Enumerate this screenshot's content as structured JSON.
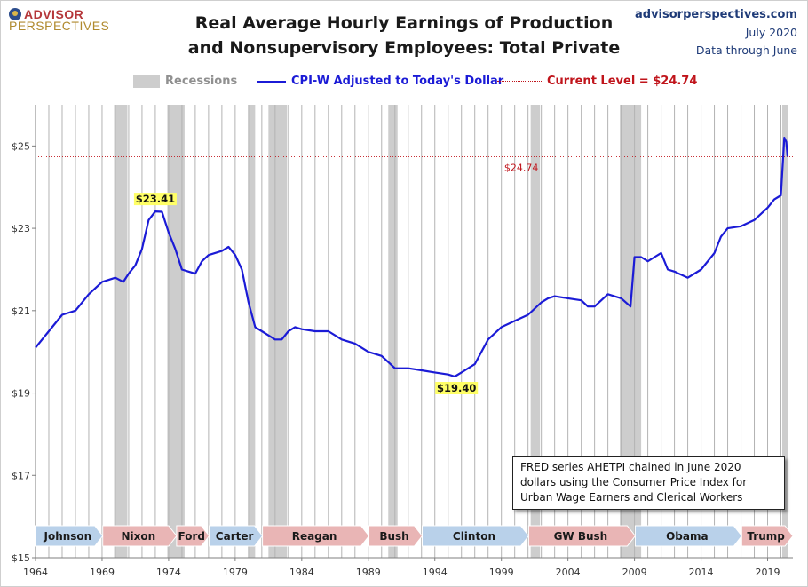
{
  "brand": {
    "logo_line1": "ADVISOR",
    "logo_line2": "PERSPECTIVES"
  },
  "header": {
    "title_line1": "Real Average Hourly Earnings of Production",
    "title_line2": "and Nonsupervisory Employees: Total Private",
    "site": "advisorperspectives.com",
    "date": "July 2020",
    "data_through": "Data through June"
  },
  "legend": {
    "recessions": "Recessions",
    "series": "CPI-W Adjusted to Today's Dollar",
    "current": "Current Level = $24.74"
  },
  "note": "FRED series AHETPI chained in June 2020 dollars using the Consumer Price Index for Urban Wage Earners and Clerical Workers",
  "colors": {
    "line": "#1b1bd6",
    "recession": "#cdcdcd",
    "current": "#c0141b",
    "annotation_bg": "#ffff66",
    "dem_arrow": "#b9d1ea",
    "rep_arrow": "#e9b5b5"
  },
  "chart_data": {
    "type": "line",
    "x_range": [
      1964,
      2020.9
    ],
    "ylim": [
      15,
      26
    ],
    "yticks": [
      15,
      17,
      19,
      21,
      23,
      25
    ],
    "ytick_labels": [
      "$15",
      "$17",
      "$19",
      "$21",
      "$23",
      "$25"
    ],
    "xticks": [
      1964,
      1969,
      1974,
      1979,
      1984,
      1989,
      1994,
      1999,
      2004,
      2009,
      2014,
      2019
    ],
    "xtick_labels": [
      "1964",
      "1969",
      "1974",
      "1979",
      "1984",
      "1989",
      "1994",
      "1999",
      "2004",
      "2009",
      "2014",
      "2019"
    ],
    "grid": "vertical",
    "current_level": 24.74,
    "recessions": [
      [
        1969.9,
        1970.9
      ],
      [
        1973.9,
        1975.2
      ],
      [
        1980.0,
        1980.5
      ],
      [
        1981.5,
        1982.9
      ],
      [
        1990.5,
        1991.2
      ],
      [
        2001.2,
        2001.9
      ],
      [
        2007.9,
        2009.5
      ],
      [
        2020.1,
        2020.5
      ]
    ],
    "series": [
      {
        "name": "CPI-W Adjusted to Today's Dollar",
        "points": [
          [
            1964.0,
            20.1
          ],
          [
            1965.0,
            20.5
          ],
          [
            1966.0,
            20.9
          ],
          [
            1967.0,
            21.0
          ],
          [
            1968.0,
            21.4
          ],
          [
            1969.0,
            21.7
          ],
          [
            1970.0,
            21.8
          ],
          [
            1970.6,
            21.7
          ],
          [
            1971.0,
            21.9
          ],
          [
            1971.5,
            22.1
          ],
          [
            1972.0,
            22.5
          ],
          [
            1972.5,
            23.2
          ],
          [
            1973.0,
            23.41
          ],
          [
            1973.5,
            23.4
          ],
          [
            1974.0,
            22.9
          ],
          [
            1974.5,
            22.5
          ],
          [
            1975.0,
            22.0
          ],
          [
            1975.5,
            21.95
          ],
          [
            1976.0,
            21.9
          ],
          [
            1976.5,
            22.2
          ],
          [
            1977.0,
            22.35
          ],
          [
            1978.0,
            22.45
          ],
          [
            1978.5,
            22.55
          ],
          [
            1979.0,
            22.35
          ],
          [
            1979.5,
            22.0
          ],
          [
            1980.0,
            21.2
          ],
          [
            1980.5,
            20.6
          ],
          [
            1981.0,
            20.5
          ],
          [
            1982.0,
            20.3
          ],
          [
            1982.5,
            20.3
          ],
          [
            1983.0,
            20.5
          ],
          [
            1983.5,
            20.6
          ],
          [
            1984.0,
            20.55
          ],
          [
            1985.0,
            20.5
          ],
          [
            1986.0,
            20.5
          ],
          [
            1987.0,
            20.3
          ],
          [
            1988.0,
            20.2
          ],
          [
            1989.0,
            20.0
          ],
          [
            1990.0,
            19.9
          ],
          [
            1991.0,
            19.6
          ],
          [
            1992.0,
            19.6
          ],
          [
            1993.0,
            19.55
          ],
          [
            1994.0,
            19.5
          ],
          [
            1995.0,
            19.45
          ],
          [
            1995.5,
            19.4
          ],
          [
            1996.0,
            19.5
          ],
          [
            1997.0,
            19.7
          ],
          [
            1998.0,
            20.3
          ],
          [
            1999.0,
            20.6
          ],
          [
            2000.0,
            20.75
          ],
          [
            2001.0,
            20.9
          ],
          [
            2002.0,
            21.2
          ],
          [
            2002.5,
            21.3
          ],
          [
            2003.0,
            21.35
          ],
          [
            2004.0,
            21.3
          ],
          [
            2005.0,
            21.25
          ],
          [
            2005.5,
            21.1
          ],
          [
            2006.0,
            21.1
          ],
          [
            2007.0,
            21.4
          ],
          [
            2008.0,
            21.3
          ],
          [
            2008.7,
            21.1
          ],
          [
            2009.0,
            22.3
          ],
          [
            2009.5,
            22.3
          ],
          [
            2010.0,
            22.2
          ],
          [
            2010.5,
            22.3
          ],
          [
            2011.0,
            22.4
          ],
          [
            2011.5,
            22.0
          ],
          [
            2012.0,
            21.95
          ],
          [
            2013.0,
            21.8
          ],
          [
            2014.0,
            22.0
          ],
          [
            2015.0,
            22.4
          ],
          [
            2015.5,
            22.8
          ],
          [
            2016.0,
            23.0
          ],
          [
            2017.0,
            23.05
          ],
          [
            2018.0,
            23.2
          ],
          [
            2019.0,
            23.5
          ],
          [
            2019.5,
            23.7
          ],
          [
            2020.0,
            23.8
          ],
          [
            2020.25,
            25.2
          ],
          [
            2020.4,
            25.1
          ],
          [
            2020.5,
            24.74
          ]
        ]
      }
    ],
    "annotations": [
      {
        "label": "$23.41",
        "x": 1973.0,
        "y": 23.41
      },
      {
        "label": "$19.40",
        "x": 1995.5,
        "y": 19.4
      },
      {
        "label": "$24.74",
        "x": 2020.5,
        "y": 24.74
      }
    ],
    "presidents": [
      {
        "name": "Johnson",
        "start": 1964.0,
        "end": 1969.05,
        "party": "D"
      },
      {
        "name": "Nixon",
        "start": 1969.05,
        "end": 1974.6,
        "party": "R"
      },
      {
        "name": "Ford",
        "start": 1974.6,
        "end": 1977.05,
        "party": "R"
      },
      {
        "name": "Carter",
        "start": 1977.05,
        "end": 1981.05,
        "party": "D"
      },
      {
        "name": "Reagan",
        "start": 1981.05,
        "end": 1989.05,
        "party": "R"
      },
      {
        "name": "Bush",
        "start": 1989.05,
        "end": 1993.05,
        "party": "R"
      },
      {
        "name": "Clinton",
        "start": 1993.05,
        "end": 2001.05,
        "party": "D"
      },
      {
        "name": "GW Bush",
        "start": 2001.05,
        "end": 2009.05,
        "party": "R"
      },
      {
        "name": "Obama",
        "start": 2009.05,
        "end": 2017.05,
        "party": "D"
      },
      {
        "name": "Trump",
        "start": 2017.05,
        "end": 2020.9,
        "party": "R"
      }
    ]
  }
}
